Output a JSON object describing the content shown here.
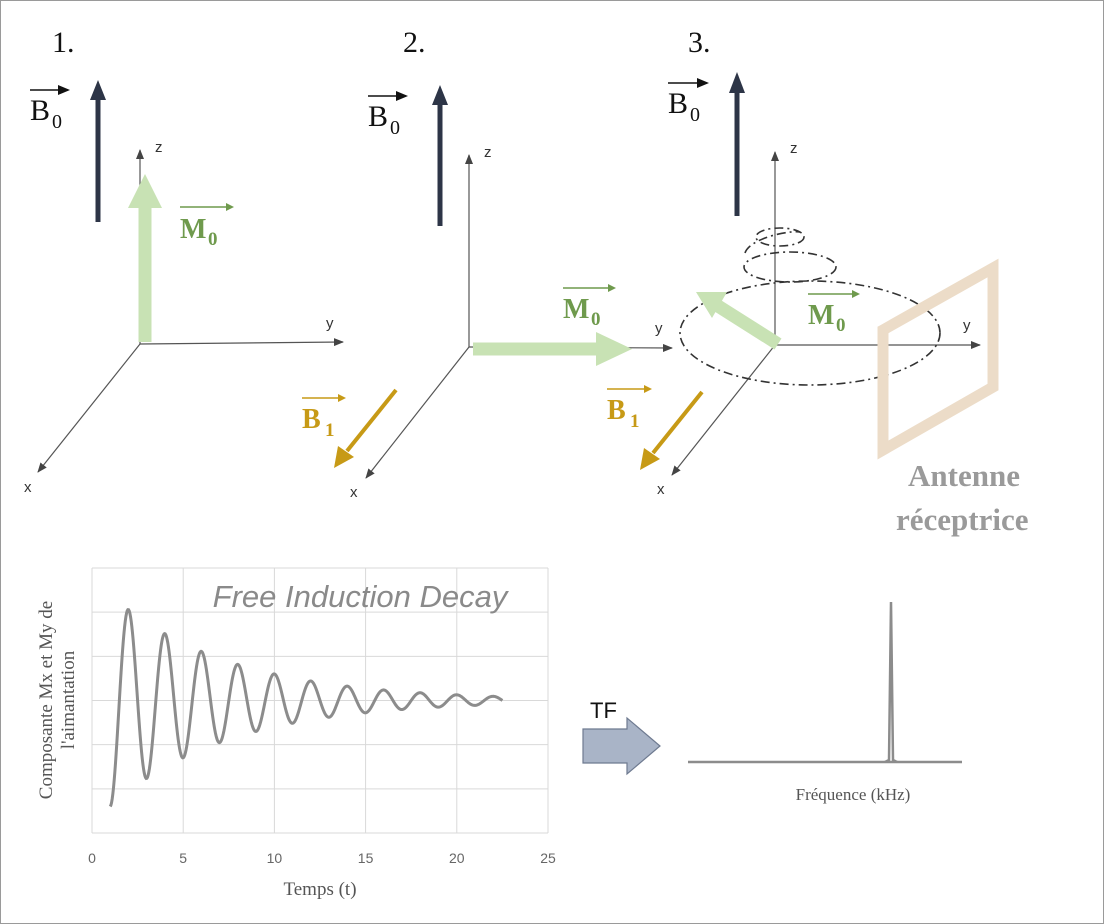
{
  "steps": [
    {
      "number": "1.",
      "b0_label": "B",
      "b0_sub": "0",
      "m0_label": "M",
      "m0_sub": "0",
      "axis_x": "x",
      "axis_y": "y",
      "axis_z": "z"
    },
    {
      "number": "2.",
      "b0_label": "B",
      "b0_sub": "0",
      "m0_label": "M",
      "m0_sub": "0",
      "b1_label": "B",
      "b1_sub": "1",
      "axis_x": "x",
      "axis_y": "y",
      "axis_z": "z"
    },
    {
      "number": "3.",
      "b0_label": "B",
      "b0_sub": "0",
      "m0_label": "M",
      "m0_sub": "0",
      "b1_label": "B",
      "b1_sub": "1",
      "axis_x": "x",
      "axis_y": "y",
      "axis_z": "z"
    }
  ],
  "antenna": {
    "line1": "Antenne",
    "line2": "réceptrice"
  },
  "colors": {
    "b0": "#2d3547",
    "m0": "#c8e2b4",
    "m0_text": "#6f9a4d",
    "b1": "#c79a16",
    "antenna": "#ecdcc8",
    "tf_arrow": "#a9b4c7",
    "signal": "#8c8c8c"
  },
  "transform_label": "TF",
  "spectrum": {
    "xlabel": "Fréquence (kHz)"
  },
  "chart_data": {
    "type": "line",
    "title": "Free Induction Decay",
    "xlabel": "Temps (t)",
    "ylabel_line1": "Composante Mx et My de",
    "ylabel_line2": "l'aimantation",
    "xlim": [
      0,
      25
    ],
    "ylim": [
      -1.25,
      1.25
    ],
    "xticks": [
      "0",
      "5",
      "10",
      "15",
      "20",
      "25"
    ],
    "grid": true,
    "series": [
      {
        "formula": "cos(pi*t)*exp(-(t-1)/6.5)",
        "t_range": [
          1,
          22.5
        ]
      }
    ]
  }
}
